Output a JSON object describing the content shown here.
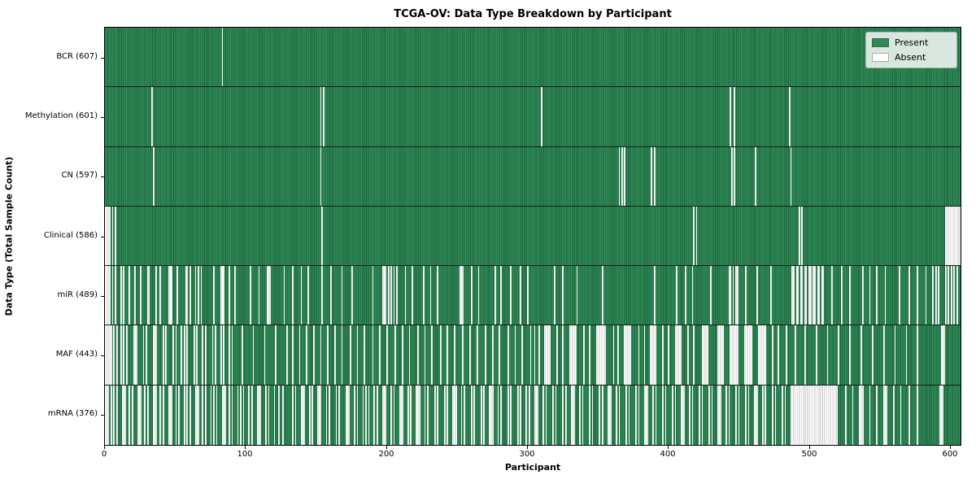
{
  "window": {
    "title": "TCGA-OV: Data Type Breakdown by Participant"
  },
  "colors": {
    "present": "#2e8b57",
    "present_edge": "#1f5f3b",
    "absent": "#fdfdfd",
    "absent_edge": "#c7c7c7",
    "axis": "#000000"
  },
  "chart_data": {
    "type": "heatmap",
    "title": "TCGA-OV: Data Type Breakdown by Participant",
    "xlabel": "Participant",
    "ylabel": "Data Type (Total Sample Count)",
    "x_ticks": [
      0,
      100,
      200,
      300,
      400,
      500,
      600
    ],
    "x_max": 608,
    "grid": false,
    "legend_position": "upper right",
    "legend": [
      {
        "label": "Present",
        "color": "#2e8b57"
      },
      {
        "label": "Absent",
        "color": "#ffffff"
      }
    ],
    "rows": [
      {
        "label": "BCR (607)",
        "total": 607,
        "absent": [
          83
        ]
      },
      {
        "label": "Methylation (601)",
        "total": 601,
        "absent": [
          33,
          153,
          155,
          310,
          444,
          447,
          486
        ]
      },
      {
        "label": "CN (597)",
        "total": 597,
        "absent": [
          34,
          153,
          365,
          367,
          369,
          388,
          390,
          445,
          447,
          462,
          487
        ]
      },
      {
        "label": "Clinical (586)",
        "total": 586,
        "absent": [
          [
            0,
            3
          ],
          5,
          7,
          154,
          418,
          420,
          493,
          495,
          [
            597,
            607
          ]
        ]
      },
      {
        "label": "miR (489)",
        "total": 489,
        "absent": [
          [
            0,
            3
          ],
          5,
          7,
          11,
          13,
          17,
          21,
          25,
          30,
          31,
          36,
          39,
          45,
          46,
          47,
          51,
          57,
          58,
          60,
          64,
          66,
          68,
          77,
          82,
          83,
          84,
          88,
          92,
          103,
          109,
          [
            115,
            117
          ],
          127,
          133,
          139,
          144,
          154,
          160,
          168,
          175,
          190,
          [
            197,
            199
          ],
          201,
          203,
          205,
          207,
          213,
          218,
          226,
          231,
          236,
          [
            252,
            254
          ],
          260,
          265,
          277,
          281,
          288,
          295,
          300,
          319,
          325,
          335,
          353,
          390,
          406,
          412,
          417,
          430,
          [
            443,
            444
          ],
          446,
          [
            448,
            449
          ],
          455,
          463,
          473,
          488,
          489,
          491,
          492,
          494,
          495,
          497,
          498,
          500,
          501,
          503,
          504,
          506,
          507,
          509,
          510,
          516,
          523,
          529,
          538,
          543,
          548,
          554,
          564,
          571,
          577,
          583,
          588,
          590,
          592,
          597,
          599,
          601,
          603,
          605
        ]
      },
      {
        "label": "MAF (443)",
        "total": 443,
        "absent": [
          [
            0,
            4
          ],
          6,
          8,
          11,
          13,
          15,
          [
            20,
            22
          ],
          27,
          29,
          [
            34,
            36
          ],
          41,
          43,
          48,
          50,
          54,
          56,
          58,
          63,
          65,
          69,
          71,
          76,
          78,
          82,
          84,
          88,
          90,
          97,
          105,
          113,
          121,
          129,
          133,
          138,
          143,
          148,
          153,
          158,
          163,
          168,
          174,
          179,
          184,
          190,
          195,
          200,
          206,
          211,
          216,
          222,
          227,
          232,
          238,
          243,
          248,
          254,
          259,
          264,
          270,
          275,
          280,
          286,
          291,
          296,
          302,
          305,
          308,
          [
            312,
            316
          ],
          321,
          325,
          [
            330,
            334
          ],
          340,
          344,
          [
            349,
            355
          ],
          361,
          364,
          [
            369,
            373
          ],
          379,
          383,
          [
            387,
            391
          ],
          396,
          400,
          [
            405,
            409
          ],
          414,
          418,
          [
            424,
            428
          ],
          [
            435,
            439
          ],
          [
            444,
            449
          ],
          [
            454,
            459
          ],
          [
            464,
            469
          ],
          474,
          478,
          484,
          490,
          497,
          505,
          513,
          521,
          529,
          537,
          545,
          553,
          561,
          569,
          577,
          [
            594,
            596
          ]
        ]
      },
      {
        "label": "mRNA (376)",
        "total": 376,
        "absent": [
          [
            0,
            2
          ],
          4,
          6,
          8,
          [
            12,
            14
          ],
          17,
          19,
          [
            23,
            25
          ],
          28,
          30,
          [
            34,
            36
          ],
          39,
          41,
          [
            45,
            47
          ],
          50,
          52,
          56,
          58,
          60,
          [
            64,
            66
          ],
          69,
          71,
          75,
          77,
          79,
          [
            83,
            85
          ],
          88,
          90,
          94,
          96,
          98,
          102,
          104,
          [
            108,
            110
          ],
          114,
          116,
          120,
          123,
          126,
          133,
          135,
          [
            139,
            141
          ],
          145,
          147,
          [
            151,
            153
          ],
          157,
          159,
          164,
          166,
          [
            171,
            173
          ],
          177,
          179,
          183,
          185,
          187,
          191,
          193,
          [
            197,
            199
          ],
          203,
          205,
          [
            209,
            211
          ],
          215,
          217,
          [
            221,
            223
          ],
          227,
          229,
          234,
          236,
          241,
          243,
          [
            247,
            249
          ],
          253,
          255,
          260,
          262,
          267,
          269,
          [
            273,
            275
          ],
          279,
          281,
          286,
          288,
          293,
          295,
          299,
          301,
          [
            305,
            307
          ],
          311,
          313,
          318,
          320,
          325,
          327,
          [
            331,
            333
          ],
          337,
          339,
          344,
          346,
          351,
          353,
          [
            357,
            359
          ],
          363,
          365,
          370,
          372,
          377,
          379,
          [
            383,
            385
          ],
          389,
          391,
          396,
          398,
          403,
          405,
          [
            409,
            411
          ],
          415,
          417,
          422,
          424,
          429,
          431,
          [
            435,
            437
          ],
          441,
          443,
          448,
          450,
          455,
          457,
          [
            461,
            463
          ],
          467,
          469,
          474,
          476,
          481,
          483,
          [
            487,
            520
          ],
          526,
          531,
          [
            536,
            538
          ],
          543,
          548,
          [
            553,
            555
          ],
          560,
          565,
          571,
          577,
          [
            593,
            595
          ]
        ]
      }
    ]
  }
}
